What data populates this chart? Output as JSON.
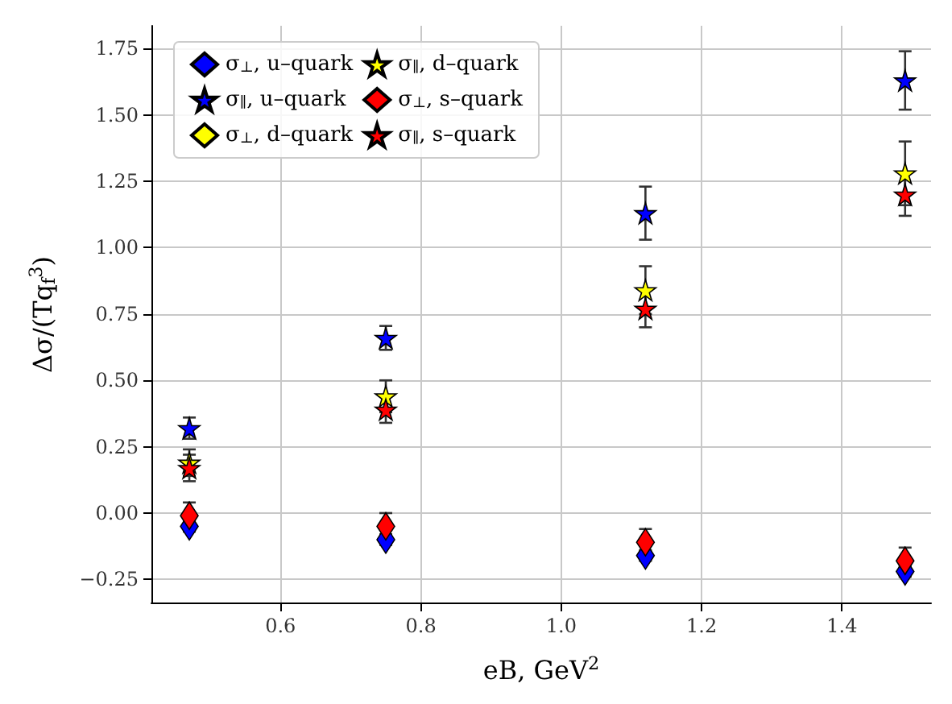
{
  "chart_data": {
    "type": "scatter",
    "xlabel": "eB, GeV$^{2}$",
    "ylabel": "Δσ/(Tq$_{f}$$^{3}$)",
    "x": [
      0.47,
      0.75,
      1.12,
      1.49
    ],
    "xlim": [
      0.416,
      1.527
    ],
    "xticks": [
      0.6,
      0.8,
      {
        "value": 1,
        "label": "1.0"
      },
      1.2,
      1.4
    ],
    "ylim": [
      -0.34,
      1.836
    ],
    "yticks": [
      {
        "value": -0.25,
        "label": "−0.25"
      },
      {
        "value": 0,
        "label": "0.00"
      },
      {
        "value": 0.25,
        "label": "0.25"
      },
      {
        "value": 0.5,
        "label": "0.50"
      },
      {
        "value": 0.75,
        "label": "0.75"
      },
      {
        "value": 1,
        "label": "1.00"
      },
      {
        "value": 1.25,
        "label": "1.25"
      },
      {
        "value": 1.5,
        "label": "1.50"
      },
      {
        "value": 1.75,
        "label": "1.75"
      }
    ],
    "grid": true,
    "legend": "top left",
    "series": [
      {
        "name": "σ$_{⊥}$, u–quark",
        "color": "#0000ff",
        "marker": "diamond",
        "values": [
          -0.05,
          -0.1,
          -0.16,
          -0.22
        ],
        "errors": [
          0.02,
          0.02,
          0.02,
          0.02
        ]
      },
      {
        "name": "σ$_{∥}$, u–quark",
        "color": "#0000ff",
        "marker": "star",
        "values": [
          0.32,
          0.66,
          1.13,
          1.63
        ],
        "errors": [
          0.04,
          0.045,
          0.1,
          0.11
        ]
      },
      {
        "name": "σ$_{⊥}$, d–quark",
        "color": "#ffff00",
        "marker": "diamond",
        "values": [
          null,
          null,
          null,
          null
        ]
      },
      {
        "name": "σ$_{∥}$, d–quark",
        "color": "#ffff00",
        "marker": "star",
        "values": [
          0.19,
          0.44,
          0.84,
          1.28
        ],
        "errors": [
          0.05,
          0.06,
          0.09,
          0.12
        ]
      },
      {
        "name": "σ$_{⊥}$, s–quark",
        "color": "#ff0000",
        "marker": "diamond",
        "values": [
          -0.01,
          -0.05,
          -0.11,
          -0.18
        ],
        "errors": [
          0.05,
          0.05,
          0.05,
          0.05
        ]
      },
      {
        "name": "σ$_{∥}$, s–quark",
        "color": "#ff0000",
        "marker": "star",
        "values": [
          0.17,
          0.39,
          0.77,
          1.2
        ],
        "errors": [
          0.05,
          0.05,
          0.07,
          0.08
        ]
      }
    ]
  }
}
